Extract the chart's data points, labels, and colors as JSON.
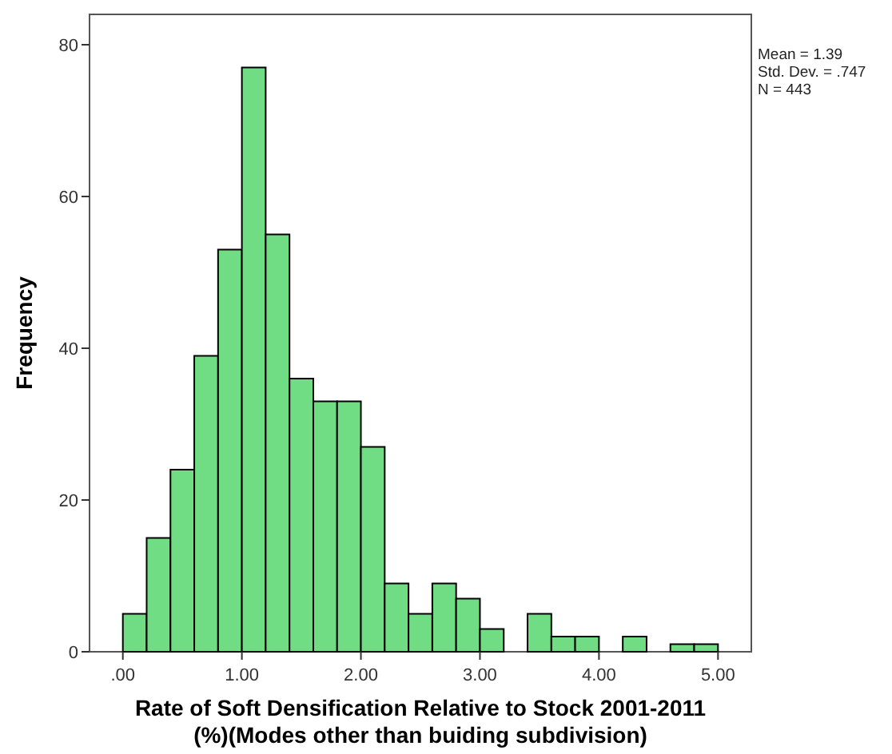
{
  "chart_data": {
    "type": "histogram",
    "xlabel": "Rate of Soft Densification Relative to Stock 2001-2011\n(%)(Modes other than buiding subdivision)",
    "ylabel": "Frequency",
    "bins": [
      0,
      0.2,
      0.4,
      0.6,
      0.8,
      1.0,
      1.2,
      1.4,
      1.6,
      1.8,
      2.0,
      2.2,
      2.4,
      2.6,
      2.8,
      3.0,
      3.2,
      3.4,
      3.6,
      3.8,
      4.0,
      4.2,
      4.4,
      4.6,
      4.8,
      5.0
    ],
    "values": [
      5,
      15,
      24,
      39,
      53,
      77,
      55,
      36,
      33,
      33,
      27,
      9,
      5,
      9,
      7,
      3,
      0,
      5,
      2,
      2,
      0,
      2,
      0,
      1,
      1
    ],
    "color": "#70dc84",
    "xlim": [
      -0.28,
      5.28
    ],
    "xticks": [
      {
        "value": 0,
        "label": ".00"
      },
      {
        "value": 1,
        "label": "1.00"
      },
      {
        "value": 2,
        "label": "2.00"
      },
      {
        "value": 3,
        "label": "3.00"
      },
      {
        "value": 4,
        "label": "4.00"
      },
      {
        "value": 5,
        "label": "5.00"
      }
    ],
    "ylim": [
      0,
      84
    ],
    "yticks": [
      0,
      20,
      40,
      60,
      80
    ],
    "annotations": [
      "Mean = 1.39\nStd. Dev. = .747\nN = 443"
    ]
  }
}
